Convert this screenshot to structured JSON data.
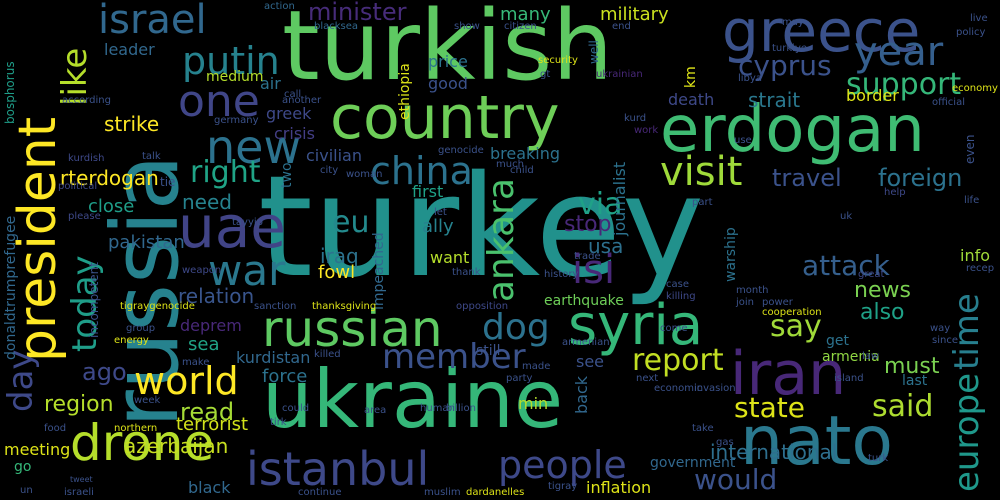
{
  "words": [
    {
      "text": "turkey",
      "color": "#21918c",
      "vertical": false
    },
    {
      "text": "turkish",
      "color": "#5ec962",
      "vertical": false
    },
    {
      "text": "russia",
      "color": "#26828e",
      "vertical": true
    },
    {
      "text": "ukraine",
      "color": "#35b779",
      "vertical": false
    },
    {
      "text": "president",
      "color": "#fde725",
      "vertical": true
    },
    {
      "text": "country",
      "color": "#6ece58",
      "vertical": false
    },
    {
      "text": "erdogan",
      "color": "#3fbc73",
      "vertical": false
    },
    {
      "text": "greece",
      "color": "#3b528b",
      "vertical": false
    },
    {
      "text": "nato",
      "color": "#2a788e",
      "vertical": false
    },
    {
      "text": "syria",
      "color": "#35b779",
      "vertical": false
    },
    {
      "text": "russian",
      "color": "#5ec962",
      "vertical": false
    },
    {
      "text": "drone",
      "color": "#b5de2b",
      "vertical": false
    },
    {
      "text": "iran",
      "color": "#482878",
      "vertical": false
    },
    {
      "text": "uae",
      "color": "#414487",
      "vertical": false
    },
    {
      "text": "istanbul",
      "color": "#3e4989",
      "vertical": false
    },
    {
      "text": "israel",
      "color": "#31688e",
      "vertical": false
    },
    {
      "text": "year",
      "color": "#355f8d",
      "vertical": false
    },
    {
      "text": "war",
      "color": "#2a788e",
      "vertical": false
    },
    {
      "text": "world",
      "color": "#fde725",
      "vertical": false
    },
    {
      "text": "people",
      "color": "#3e4989",
      "vertical": false
    },
    {
      "text": "new",
      "color": "#2c728e",
      "vertical": false
    },
    {
      "text": "china",
      "color": "#2c728e",
      "vertical": false
    },
    {
      "text": "visit",
      "color": "#9fda3a",
      "vertical": false
    },
    {
      "text": "one",
      "color": "#404688",
      "vertical": false
    },
    {
      "text": "putin",
      "color": "#26828e",
      "vertical": false
    },
    {
      "text": "time",
      "color": "#277f8e",
      "vertical": true
    },
    {
      "text": "europe",
      "color": "#1f988b",
      "vertical": true
    },
    {
      "text": "ankara",
      "color": "#4ac16d",
      "vertical": true
    },
    {
      "text": "isi",
      "color": "#482878",
      "vertical": false
    },
    {
      "text": "dog",
      "color": "#2c728e",
      "vertical": false
    },
    {
      "text": "member",
      "color": "#3b528b",
      "vertical": false
    },
    {
      "text": "today",
      "color": "#1f9e89",
      "vertical": true
    },
    {
      "text": "like",
      "color": "#b5de2b",
      "vertical": true
    },
    {
      "text": "day",
      "color": "#3e4989",
      "vertical": true
    },
    {
      "text": "support",
      "color": "#35b779",
      "vertical": false
    },
    {
      "text": "cyprus",
      "color": "#3b528b",
      "vertical": false
    },
    {
      "text": "right",
      "color": "#20a486",
      "vertical": false
    },
    {
      "text": "via",
      "color": "#1fa187",
      "vertical": false
    },
    {
      "text": "eu",
      "color": "#238a8d",
      "vertical": false
    },
    {
      "text": "said",
      "color": "#addc30",
      "vertical": false
    },
    {
      "text": "say",
      "color": "#a0da39",
      "vertical": false
    },
    {
      "text": "report",
      "color": "#c2df23",
      "vertical": false
    },
    {
      "text": "state",
      "color": "#dde318",
      "vertical": false
    },
    {
      "text": "would",
      "color": "#3b528b",
      "vertical": false
    },
    {
      "text": "attack",
      "color": "#355f8d",
      "vertical": false
    },
    {
      "text": "international",
      "color": "#2e6f8e",
      "vertical": false
    },
    {
      "text": "minister",
      "color": "#472c7a",
      "vertical": false
    },
    {
      "text": "military",
      "color": "#cae11f",
      "vertical": false
    },
    {
      "text": "many",
      "color": "#37b878",
      "vertical": false
    },
    {
      "text": "foreign",
      "color": "#2c728e",
      "vertical": false
    },
    {
      "text": "travel",
      "color": "#3b528b",
      "vertical": false
    },
    {
      "text": "strait",
      "color": "#2a788e",
      "vertical": false
    },
    {
      "text": "border",
      "color": "#dde318",
      "vertical": false
    },
    {
      "text": "relation",
      "color": "#39558c",
      "vertical": false
    },
    {
      "text": "usa",
      "color": "#2d708e",
      "vertical": false
    },
    {
      "text": "stop",
      "color": "#482878",
      "vertical": false
    },
    {
      "text": "news",
      "color": "#7ad151",
      "vertical": false
    },
    {
      "text": "also",
      "color": "#1fa187",
      "vertical": false
    },
    {
      "text": "ago",
      "color": "#3e4989",
      "vertical": false
    },
    {
      "text": "read",
      "color": "#a5db36",
      "vertical": false
    },
    {
      "text": "must",
      "color": "#7ad151",
      "vertical": false
    },
    {
      "text": "region",
      "color": "#b5de2b",
      "vertical": false
    },
    {
      "text": "force",
      "color": "#2c728e",
      "vertical": false
    },
    {
      "text": "azerbaijan",
      "color": "#c8e020",
      "vertical": false
    },
    {
      "text": "terrorist",
      "color": "#d2e21b",
      "vertical": false
    },
    {
      "text": "sea",
      "color": "#20a486",
      "vertical": false
    },
    {
      "text": "strike",
      "color": "#fde725",
      "vertical": false
    },
    {
      "text": "need",
      "color": "#26828e",
      "vertical": false
    },
    {
      "text": "close",
      "color": "#1f9e89",
      "vertical": false
    },
    {
      "text": "rterdogan",
      "color": "#fde725",
      "vertical": false
    },
    {
      "text": "pakistan",
      "color": "#31688e",
      "vertical": false
    },
    {
      "text": "iraq",
      "color": "#2c728e",
      "vertical": false
    },
    {
      "text": "fowl",
      "color": "#fde725",
      "vertical": false
    },
    {
      "text": "want",
      "color": "#b5de2b",
      "vertical": false
    },
    {
      "text": "ally",
      "color": "#26828e",
      "vertical": false
    },
    {
      "text": "first",
      "color": "#1fa187",
      "vertical": false
    },
    {
      "text": "breaking",
      "color": "#2c728e",
      "vertical": false
    },
    {
      "text": "civilian",
      "color": "#3b528b",
      "vertical": false
    },
    {
      "text": "crisis",
      "color": "#433e85",
      "vertical": false
    },
    {
      "text": "greek",
      "color": "#3e4989",
      "vertical": false
    },
    {
      "text": "air",
      "color": "#2c728e",
      "vertical": false
    },
    {
      "text": "medium",
      "color": "#b5de2b",
      "vertical": false
    },
    {
      "text": "leader",
      "color": "#31688e",
      "vertical": false
    },
    {
      "text": "price",
      "color": "#2c728e",
      "vertical": false
    },
    {
      "text": "good",
      "color": "#3b528b",
      "vertical": false
    },
    {
      "text": "death",
      "color": "#3e4989",
      "vertical": false
    },
    {
      "text": "kurdistan",
      "color": "#31688e",
      "vertical": false
    },
    {
      "text": "earthquake",
      "color": "#6ece58",
      "vertical": false
    },
    {
      "text": "deprem",
      "color": "#482878",
      "vertical": false
    },
    {
      "text": "government",
      "color": "#31688e",
      "vertical": false
    },
    {
      "text": "inflation",
      "color": "#dde318",
      "vertical": false
    },
    {
      "text": "black",
      "color": "#31688e",
      "vertical": false
    },
    {
      "text": "armenia",
      "color": "#90d743",
      "vertical": false
    },
    {
      "text": "last",
      "color": "#2c728e",
      "vertical": false
    },
    {
      "text": "info",
      "color": "#a0da39",
      "vertical": false
    },
    {
      "text": "get",
      "color": "#2c728e",
      "vertical": false
    },
    {
      "text": "meeting",
      "color": "#dde318",
      "vertical": false
    },
    {
      "text": "go",
      "color": "#35b779",
      "vertical": false
    },
    {
      "text": "min",
      "color": "#b5de2b",
      "vertical": false
    },
    {
      "text": "see",
      "color": "#3b528b",
      "vertical": false
    },
    {
      "text": "back",
      "color": "#31688e",
      "vertical": true
    },
    {
      "text": "journalist",
      "color": "#2c728e",
      "vertical": true
    },
    {
      "text": "impeached",
      "color": "#31688e",
      "vertical": true
    },
    {
      "text": "two",
      "color": "#2c728e",
      "vertical": true
    },
    {
      "text": "ethiopia",
      "color": "#dde318",
      "vertical": true
    },
    {
      "text": "warship",
      "color": "#2c728e",
      "vertical": true
    },
    {
      "text": "km",
      "color": "#dde318",
      "vertical": true
    },
    {
      "text": "bosphorus",
      "color": "#1f9e89",
      "vertical": true
    },
    {
      "text": "donaldtrumprefugee",
      "color": "#31688e",
      "vertical": true
    },
    {
      "text": "incompetent",
      "color": "#3b528b",
      "vertical": true
    },
    {
      "text": "well",
      "color": "#31688e",
      "vertical": true
    },
    {
      "text": "even",
      "color": "#3b528b",
      "vertical": true
    },
    {
      "text": "action",
      "color": "#31688e",
      "vertical": false
    },
    {
      "text": "blacksea",
      "color": "#31688e",
      "vertical": false
    },
    {
      "text": "show",
      "color": "#3b528b",
      "vertical": false
    },
    {
      "text": "citizen",
      "color": "#3b528b",
      "vertical": false
    },
    {
      "text": "end",
      "color": "#3b528b",
      "vertical": false
    },
    {
      "text": "live",
      "color": "#3b528b",
      "vertical": false
    },
    {
      "text": "policy",
      "color": "#3b528b",
      "vertical": false
    },
    {
      "text": "economy",
      "color": "#dde318",
      "vertical": false
    },
    {
      "text": "may",
      "color": "#3b528b",
      "vertical": false
    },
    {
      "text": "turkiye",
      "color": "#3b528b",
      "vertical": false
    },
    {
      "text": "security",
      "color": "#dde318",
      "vertical": false
    },
    {
      "text": "gt",
      "color": "#3b528b",
      "vertical": false
    },
    {
      "text": "ukrainian",
      "color": "#482878",
      "vertical": false
    },
    {
      "text": "libya",
      "color": "#3b528b",
      "vertical": false
    },
    {
      "text": "according",
      "color": "#3b528b",
      "vertical": false
    },
    {
      "text": "call",
      "color": "#3b528b",
      "vertical": false
    },
    {
      "text": "another",
      "color": "#3b528b",
      "vertical": false
    },
    {
      "text": "germany",
      "color": "#3b528b",
      "vertical": false
    },
    {
      "text": "kurd",
      "color": "#3b528b",
      "vertical": false
    },
    {
      "text": "work",
      "color": "#482878",
      "vertical": false
    },
    {
      "text": "official",
      "color": "#3b528b",
      "vertical": false
    },
    {
      "text": "use",
      "color": "#3b528b",
      "vertical": false
    },
    {
      "text": "kurdish",
      "color": "#3e4989",
      "vertical": false
    },
    {
      "text": "talk",
      "color": "#3b528b",
      "vertical": false
    },
    {
      "text": "political",
      "color": "#3e4989",
      "vertical": false
    },
    {
      "text": "tie",
      "color": "#3b528b",
      "vertical": false
    },
    {
      "text": "tayyip",
      "color": "#3b528b",
      "vertical": false
    },
    {
      "text": "city",
      "color": "#3b528b",
      "vertical": false
    },
    {
      "text": "woman",
      "color": "#3b528b",
      "vertical": false
    },
    {
      "text": "genocide",
      "color": "#3b528b",
      "vertical": false
    },
    {
      "text": "child",
      "color": "#3b528b",
      "vertical": false
    },
    {
      "text": "much",
      "color": "#3b528b",
      "vertical": false
    },
    {
      "text": "please",
      "color": "#3e4989",
      "vertical": false
    },
    {
      "text": "let",
      "color": "#3b528b",
      "vertical": false
    },
    {
      "text": "help",
      "color": "#3e4989",
      "vertical": false
    },
    {
      "text": "life",
      "color": "#3b528b",
      "vertical": false
    },
    {
      "text": "part",
      "color": "#3b528b",
      "vertical": false
    },
    {
      "text": "uk",
      "color": "#3b528b",
      "vertical": false
    },
    {
      "text": "thank",
      "color": "#3b528b",
      "vertical": false
    },
    {
      "text": "history",
      "color": "#3b528b",
      "vertical": false
    },
    {
      "text": "trade",
      "color": "#3b528b",
      "vertical": false
    },
    {
      "text": "weapon",
      "color": "#3e4989",
      "vertical": false
    },
    {
      "text": "great",
      "color": "#3e4989",
      "vertical": false
    },
    {
      "text": "recep",
      "color": "#3b528b",
      "vertical": false
    },
    {
      "text": "opposition",
      "color": "#3e4989",
      "vertical": false
    },
    {
      "text": "case",
      "color": "#3b528b",
      "vertical": false
    },
    {
      "text": "killing",
      "color": "#3e4989",
      "vertical": false
    },
    {
      "text": "month",
      "color": "#3b528b",
      "vertical": false
    },
    {
      "text": "join",
      "color": "#3b528b",
      "vertical": false
    },
    {
      "text": "power",
      "color": "#3b528b",
      "vertical": false
    },
    {
      "text": "cooperation",
      "color": "#dde318",
      "vertical": false
    },
    {
      "text": "sanction",
      "color": "#3b528b",
      "vertical": false
    },
    {
      "text": "thanksgiving",
      "color": "#dde318",
      "vertical": false
    },
    {
      "text": "tigraygenocide",
      "color": "#dde318",
      "vertical": false
    },
    {
      "text": "group",
      "color": "#3b528b",
      "vertical": false
    },
    {
      "text": "come",
      "color": "#3b528b",
      "vertical": false
    },
    {
      "text": "way",
      "color": "#3b528b",
      "vertical": false
    },
    {
      "text": "energy",
      "color": "#dde318",
      "vertical": false
    },
    {
      "text": "make",
      "color": "#3b528b",
      "vertical": false
    },
    {
      "text": "killed",
      "color": "#3b528b",
      "vertical": false
    },
    {
      "text": "still",
      "color": "#3b528b",
      "vertical": false
    },
    {
      "text": "law",
      "color": "#3b528b",
      "vertical": false
    },
    {
      "text": "since",
      "color": "#3b528b",
      "vertical": false
    },
    {
      "text": "armenian",
      "color": "#3b528b",
      "vertical": false
    },
    {
      "text": "party",
      "color": "#3b528b",
      "vertical": false
    },
    {
      "text": "made",
      "color": "#3b528b",
      "vertical": false
    },
    {
      "text": "next",
      "color": "#3b528b",
      "vertical": false
    },
    {
      "text": "week",
      "color": "#3b528b",
      "vertical": false
    },
    {
      "text": "economic",
      "color": "#3b528b",
      "vertical": false
    },
    {
      "text": "invasion",
      "color": "#3b528b",
      "vertical": false
    },
    {
      "text": "island",
      "color": "#3b528b",
      "vertical": false
    },
    {
      "text": "tirk",
      "color": "#3b528b",
      "vertical": false
    },
    {
      "text": "could",
      "color": "#3b528b",
      "vertical": false
    },
    {
      "text": "area",
      "color": "#3b528b",
      "vertical": false
    },
    {
      "text": "human",
      "color": "#3b528b",
      "vertical": false
    },
    {
      "text": "billion",
      "color": "#3b528b",
      "vertical": false
    },
    {
      "text": "take",
      "color": "#3b528b",
      "vertical": false
    },
    {
      "text": "gas",
      "color": "#3b528b",
      "vertical": false
    },
    {
      "text": "food",
      "color": "#3b528b",
      "vertical": false
    },
    {
      "text": "northern",
      "color": "#dde318",
      "vertical": false
    },
    {
      "text": "muslim",
      "color": "#3b528b",
      "vertical": false
    },
    {
      "text": "dardanelles",
      "color": "#dde318",
      "vertical": false
    },
    {
      "text": "tigray",
      "color": "#3b528b",
      "vertical": false
    },
    {
      "text": "continue",
      "color": "#3b528b",
      "vertical": false
    },
    {
      "text": "israeli",
      "color": "#3b528b",
      "vertical": false
    },
    {
      "text": "un",
      "color": "#3b528b",
      "vertical": false
    },
    {
      "text": "tweet",
      "color": "#3b528b",
      "vertical": false
    },
    {
      "text": "turk",
      "color": "#3b528b",
      "vertical": false
    }
  ]
}
